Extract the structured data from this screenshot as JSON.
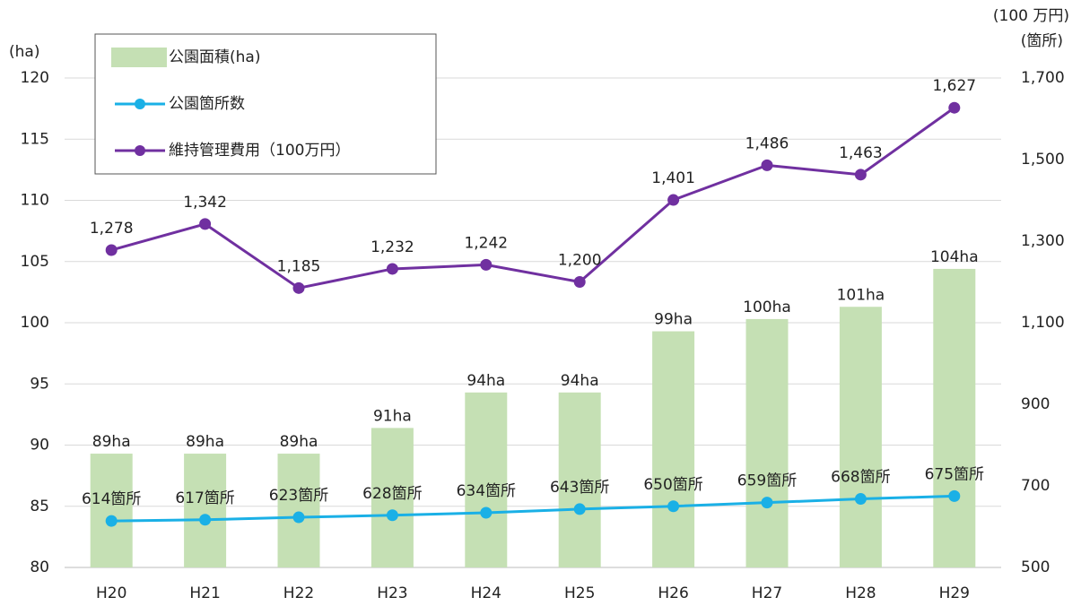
{
  "chart_data": {
    "type": "combo",
    "categories": [
      "H20",
      "H21",
      "H22",
      "H23",
      "H24",
      "H25",
      "H26",
      "H27",
      "H28",
      "H29"
    ],
    "series": [
      {
        "name": "公園面積(ha)",
        "type": "bar",
        "color": "#c5e0b4",
        "axis": "y",
        "values": [
          89.3,
          89.3,
          89.3,
          91.4,
          94.3,
          94.3,
          99.3,
          100.3,
          101.3,
          104.4
        ],
        "value_labels": [
          "89ha",
          "89ha",
          "89ha",
          "91ha",
          "94ha",
          "94ha",
          "99ha",
          "100ha",
          "101ha",
          "104ha"
        ]
      },
      {
        "name": "公園箇所数",
        "type": "line",
        "color": "#1ab0e6",
        "axis": "y2",
        "values": [
          614,
          617,
          623,
          628,
          634,
          643,
          650,
          659,
          668,
          675
        ],
        "value_labels": [
          "614箇所",
          "617箇所",
          "623箇所",
          "628箇所",
          "634箇所",
          "643箇所",
          "650箇所",
          "659箇所",
          "668箇所",
          "675箇所"
        ]
      },
      {
        "name": "維持管理費用（100万円）",
        "type": "line",
        "color": "#7030a0",
        "axis": "y2",
        "values": [
          1278,
          1342,
          1185,
          1232,
          1242,
          1200,
          1401,
          1486,
          1463,
          1627
        ],
        "value_labels": [
          "1,278",
          "1,342",
          "1,185",
          "1,232",
          "1,242",
          "1,200",
          "1,401",
          "1,486",
          "1,463",
          "1,627"
        ]
      }
    ],
    "y_label": "(ha)",
    "y2_label": "(100 万円)",
    "y2_label2": "(箇所)",
    "ylim": [
      80,
      120
    ],
    "yticks": [
      80,
      85,
      90,
      95,
      100,
      105,
      110,
      115,
      120
    ],
    "y2lim": [
      500,
      1700
    ],
    "y2ticks": [
      500,
      700,
      900,
      {
        "value": 1100,
        "label": "1,100"
      },
      {
        "value": 1300,
        "label": "1,300"
      },
      {
        "value": 1500,
        "label": "1,500"
      },
      {
        "value": 1700,
        "label": "1,700"
      }
    ],
    "grid": true,
    "legend": "upper left"
  }
}
